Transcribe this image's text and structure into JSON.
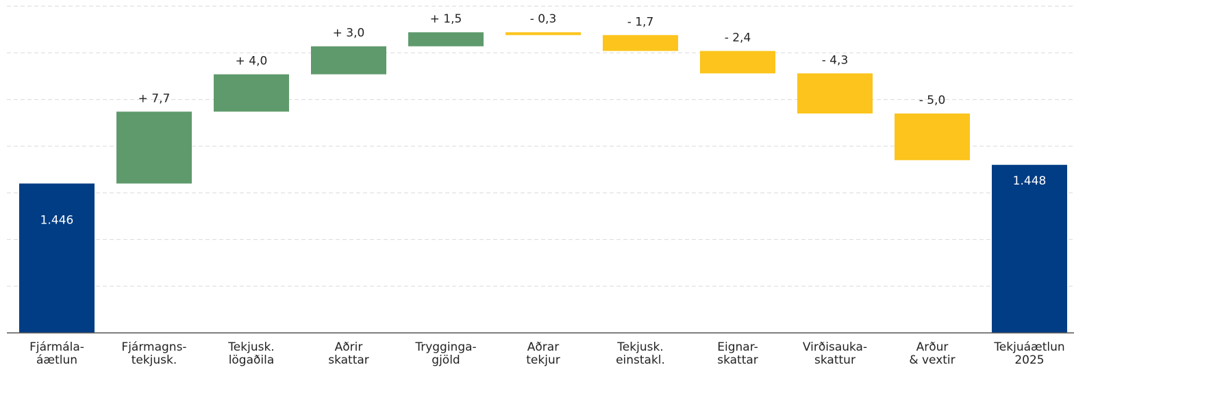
{
  "chart_data": {
    "type": "waterfall",
    "categories": [
      [
        "Fjármála-",
        "áætlun"
      ],
      [
        "Fjármagns-",
        "tekjusk."
      ],
      [
        "Tekjusk.",
        "lögaðila"
      ],
      [
        "Aðrir",
        "skattar"
      ],
      [
        "Trygginga-",
        "gjöld"
      ],
      [
        "Aðrar",
        "tekjur"
      ],
      [
        "Tekjusk.",
        "einstakl."
      ],
      [
        "Eignar-",
        "skattar"
      ],
      [
        "Virðisauka-",
        "skattur"
      ],
      [
        "Arður",
        "& vextir"
      ],
      [
        "Tekjuáætlun",
        "2025"
      ]
    ],
    "measure": [
      "absolute",
      "relative",
      "relative",
      "relative",
      "relative",
      "relative",
      "relative",
      "relative",
      "relative",
      "relative",
      "total"
    ],
    "values": [
      1446,
      7.7,
      4.0,
      3.0,
      1.5,
      -0.3,
      -1.7,
      -2.4,
      -4.3,
      -5.0,
      1448
    ],
    "value_labels": [
      "1.446",
      "+ 7,7",
      "+ 4,0",
      "+ 3,0",
      "+ 1,5",
      "- 0,3",
      "- 1,7",
      "- 2,4",
      "- 4,3",
      "- 5,0",
      "1.448"
    ],
    "colors": {
      "total": "#003d85",
      "increase": "#5f9a6c",
      "decrease": "#fcc41c"
    },
    "ylim": [
      1430,
      1465
    ],
    "yticks": [
      1430,
      1435,
      1440,
      1445,
      1450,
      1455,
      1460,
      1465
    ],
    "grid": true
  }
}
